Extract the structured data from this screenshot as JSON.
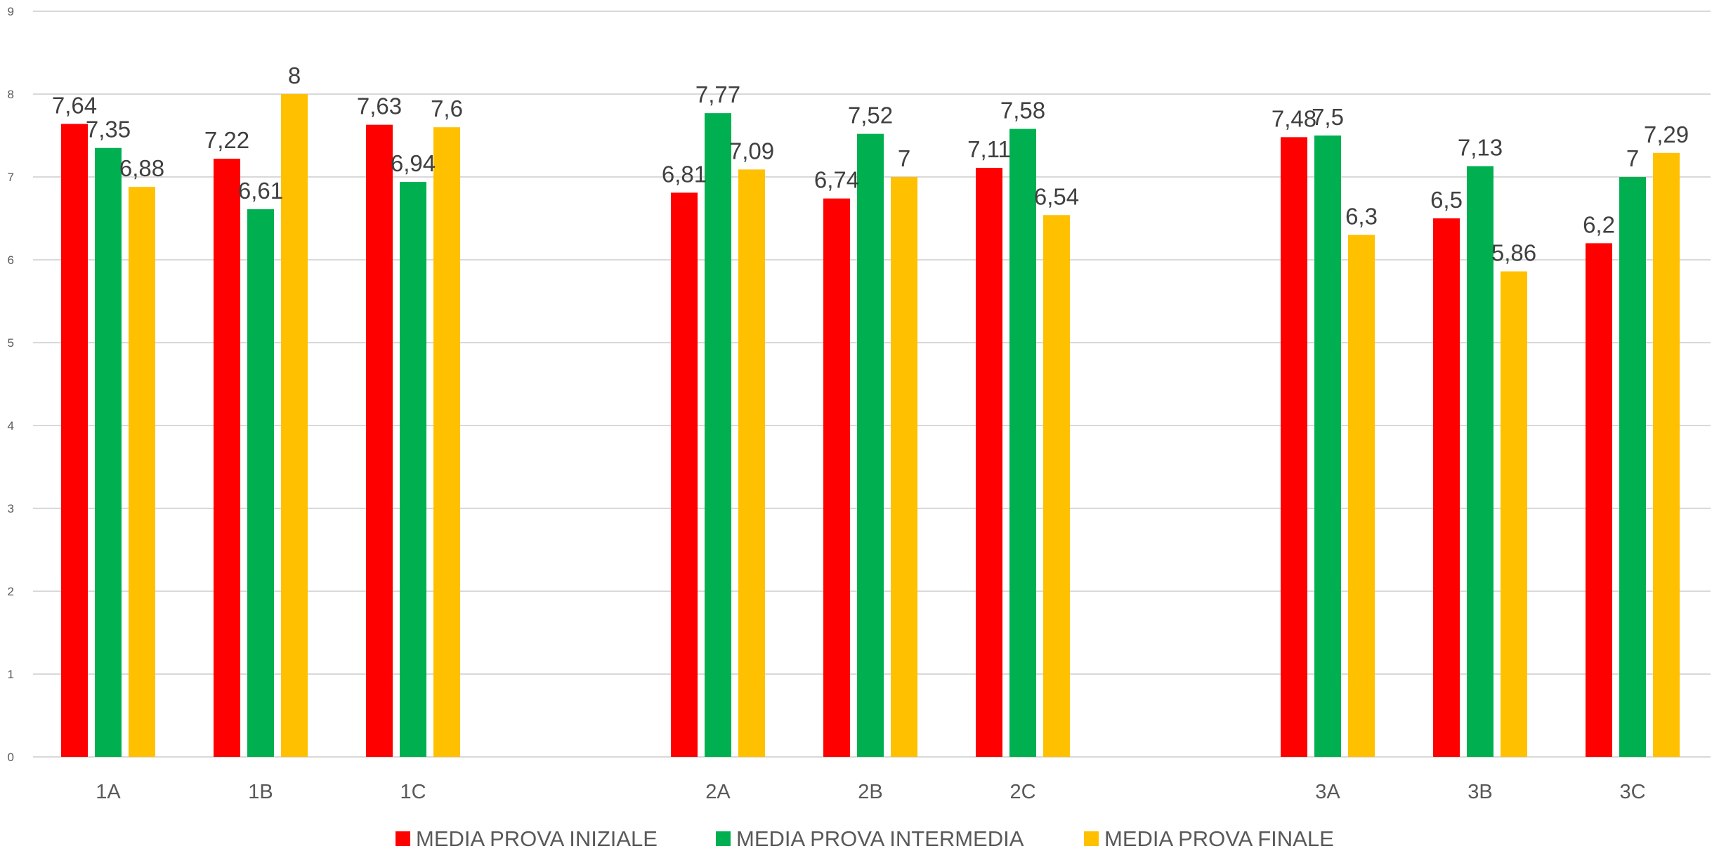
{
  "chart_data": {
    "type": "bar",
    "categories": [
      "1A",
      "1B",
      "1C",
      "2A",
      "2B",
      "2C",
      "3A",
      "3B",
      "3C"
    ],
    "groups": [
      [
        "1A",
        "1B",
        "1C"
      ],
      [
        "2A",
        "2B",
        "2C"
      ],
      [
        "3A",
        "3B",
        "3C"
      ]
    ],
    "series": [
      {
        "name": "MEDIA PROVA INIZIALE",
        "color": "#FF0000",
        "values": [
          7.64,
          7.22,
          7.63,
          6.81,
          6.74,
          7.11,
          7.48,
          6.5,
          6.2
        ],
        "labels": [
          "7,64",
          "7,22",
          "7,63",
          "6,81",
          "6,74",
          "7,11",
          "7,48",
          "6,5",
          "6,2"
        ]
      },
      {
        "name": "MEDIA PROVA INTERMEDIA",
        "color": "#00B050",
        "values": [
          7.35,
          6.61,
          6.94,
          7.77,
          7.52,
          7.58,
          7.5,
          7.13,
          7
        ],
        "labels": [
          "7,35",
          "6,61",
          "6,94",
          "7,77",
          "7,52",
          "7,58",
          "7,5",
          "7,13",
          "7"
        ]
      },
      {
        "name": "MEDIA PROVA FINALE",
        "color": "#FFC000",
        "values": [
          6.88,
          8,
          7.6,
          7.09,
          7,
          6.54,
          6.3,
          5.86,
          7.29
        ],
        "labels": [
          "6,88",
          "8",
          "7,6",
          "7,09",
          "7",
          "6,54",
          "6,3",
          "5,86",
          "7,29"
        ]
      }
    ],
    "ylim": [
      0,
      9
    ],
    "yticks": [
      "0",
      "1",
      "2",
      "3",
      "4",
      "5",
      "6",
      "7",
      "8",
      "9"
    ],
    "grid": true,
    "legend_position": "bottom",
    "gridline_color": "#D9D9D9",
    "title": "",
    "xlabel": "",
    "ylabel": ""
  }
}
